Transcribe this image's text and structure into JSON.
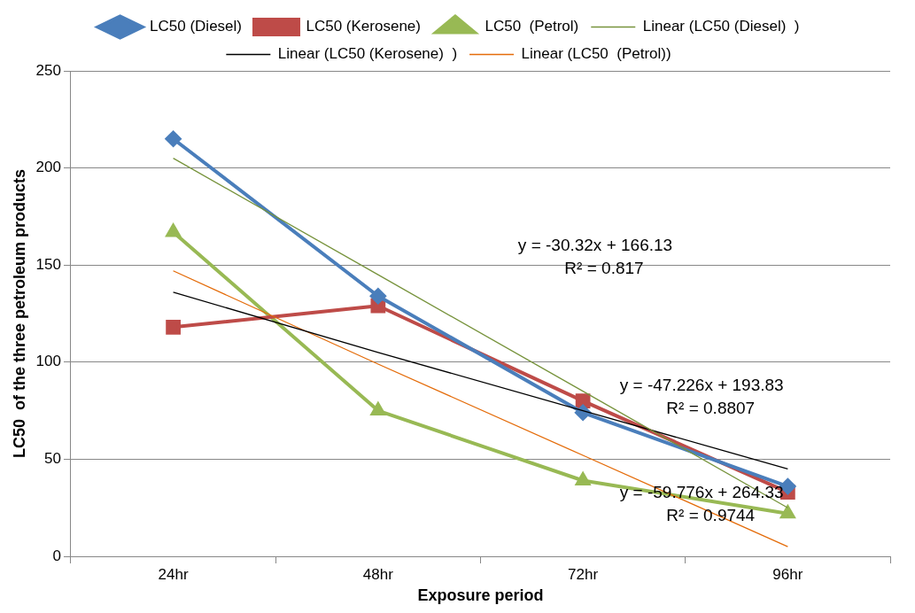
{
  "chart_data": {
    "type": "line",
    "xlabel": "Exposure period",
    "ylabel": "LC50  of the three petroleum products",
    "categories": [
      "24hr",
      "48hr",
      "72hr",
      "96hr"
    ],
    "series": [
      {
        "name": "LC50 (Diesel)",
        "color": "#4a7ebb",
        "values": [
          215,
          134,
          74,
          36
        ],
        "marker": "diamond"
      },
      {
        "name": "LC50 (Kerosene)",
        "color": "#be4b48",
        "values": [
          118,
          129,
          80,
          33
        ],
        "marker": "square"
      },
      {
        "name": "LC50  (Petrol)",
        "color": "#98b954",
        "values": [
          167,
          75,
          39,
          22
        ],
        "marker": "triangle"
      },
      {
        "name": "Linear (LC50 (Diesel)  )",
        "color": "#77933c",
        "values": [
          205,
          145,
          85,
          25
        ],
        "marker": "none"
      },
      {
        "name": "Linear (LC50 (Kerosene)  )",
        "color": "#000000",
        "values": [
          136,
          105,
          75,
          45
        ],
        "marker": "none"
      },
      {
        "name": "Linear (LC50  (Petrol))",
        "color": "#e46c0a",
        "values": [
          147,
          99,
          52,
          5
        ],
        "marker": "none"
      }
    ],
    "ylim": [
      0,
      250
    ],
    "yticks": [
      0,
      50,
      100,
      150,
      200,
      250
    ],
    "grid": "y",
    "legend": "top",
    "annotations": [
      "y = -30.32x + 166.13\nR² = 0.817",
      "y = -47.226x + 193.83\nR² = 0.8807",
      "y = -59.776x + 264.33\nR² = 0.9744"
    ]
  }
}
